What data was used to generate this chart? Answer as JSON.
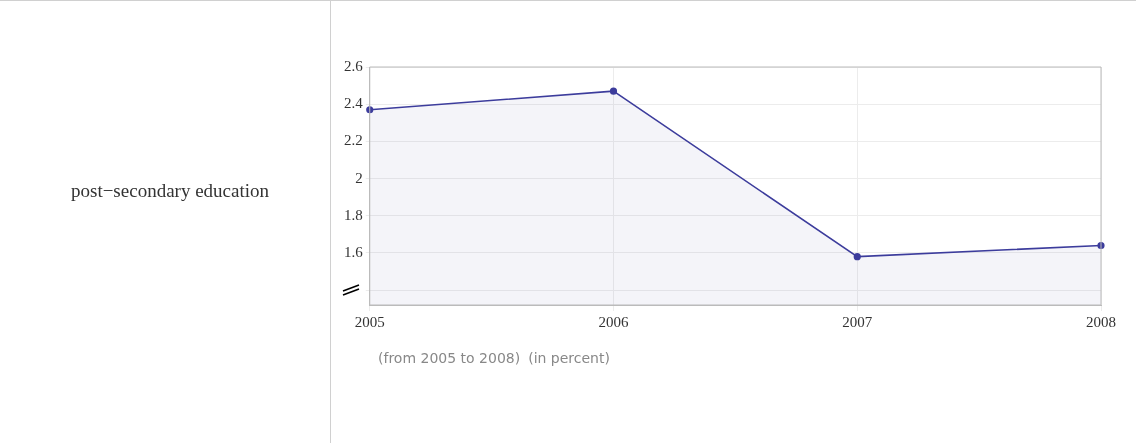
{
  "chart_data": {
    "type": "area",
    "ylabel": "post−secondary education",
    "x": [
      2005,
      2006,
      2007,
      2008
    ],
    "series": [
      {
        "color": "#3c3c9c",
        "values": [
          2.37,
          2.47,
          1.58,
          1.64
        ]
      }
    ],
    "xlim": [
      2005,
      2008
    ],
    "xticks": [
      2005,
      2006,
      2007,
      2008
    ],
    "ylim": [
      1.32,
      2.6
    ],
    "yticks": [
      {
        "value": 1.4,
        "label": null
      },
      1.6,
      1.8,
      2,
      2.2,
      2.4,
      2.6
    ],
    "grid": true,
    "marker": "circle",
    "annotations": [
      "(from 2005 to 2008)",
      "(in percent)"
    ]
  }
}
